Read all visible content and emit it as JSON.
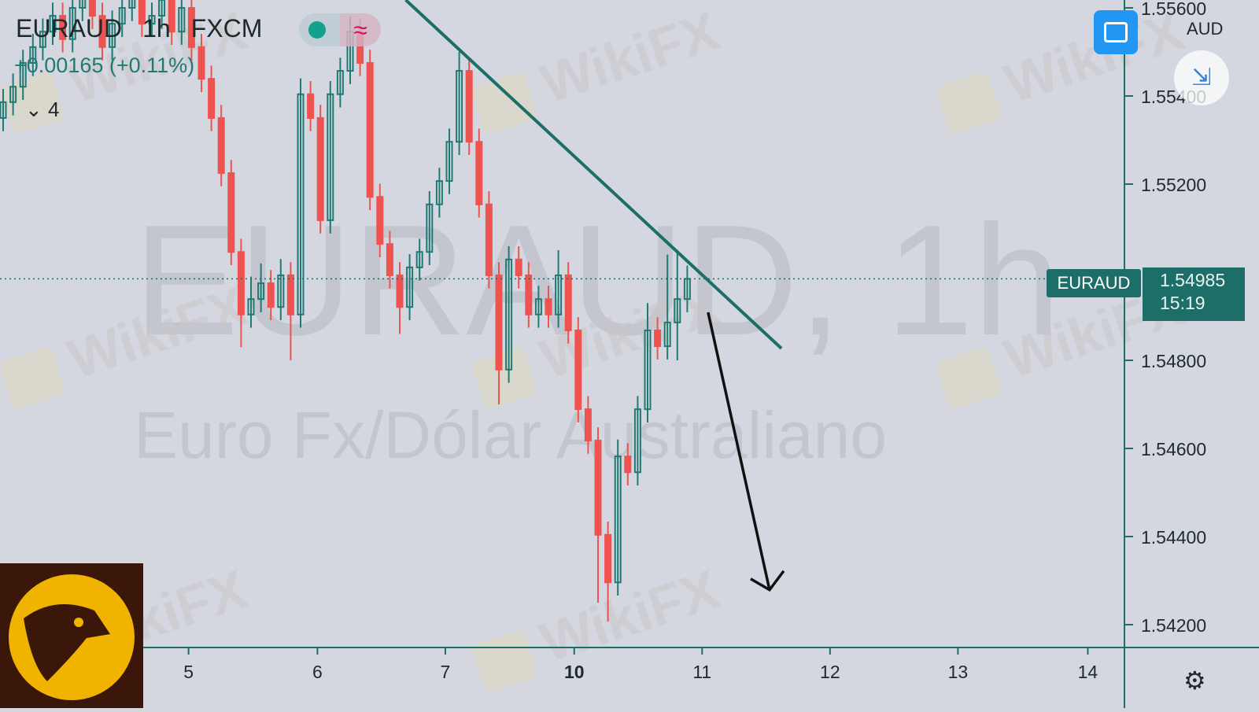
{
  "header": {
    "symbol": "EURAUD",
    "interval": "1h",
    "exchange": "FXCM",
    "change": "+0.00165 (+0.11%)",
    "indicators_toggle": "4",
    "status_dot_color": "#13a08c",
    "wave_icon": "≈"
  },
  "watermark": {
    "title": "EURAUD, 1h",
    "description": "Euro Fx/Dólar Australiano",
    "brand": "WikiFX"
  },
  "controls": {
    "fullscreen_icon": "fullscreen-icon",
    "collapse_icon": "collapse-icon",
    "settings_icon": "gear-icon"
  },
  "price_axis": {
    "currency": "AUD",
    "last_symbol": "EURAUD",
    "last_price": "1.54985",
    "countdown": "15:19"
  },
  "colors": {
    "up": "#1f7a73",
    "down": "#ef5350",
    "trendline": "#1d6e68",
    "arrow": "#111111",
    "background": "#d4d7e0"
  },
  "chart_data": {
    "type": "candlestick",
    "title": "EURAUD, 1h",
    "ylim": [
      1.5405,
      1.5563
    ],
    "yticks": [
      "1.55600",
      "1.55400",
      "1.55200",
      "1.54800",
      "1.54600",
      "1.54400",
      "1.54200"
    ],
    "xticks": [
      {
        "label": "5",
        "bar": 18.7
      },
      {
        "label": "6",
        "bar": 31.7
      },
      {
        "label": "7",
        "bar": 44.6
      },
      {
        "label": "10",
        "bar": 57.6,
        "bold": true
      },
      {
        "label": "11",
        "bar": 70.5
      },
      {
        "label": "12",
        "bar": 83.4
      },
      {
        "label": "13",
        "bar": 96.3
      },
      {
        "label": "14",
        "bar": 109.4
      }
    ],
    "last_price": 1.54985,
    "candles": [
      [
        1.5535,
        1.55416,
        1.5532,
        1.55386
      ],
      [
        1.55386,
        1.55451,
        1.55356,
        1.55421
      ],
      [
        1.55421,
        1.55505,
        1.55391,
        1.55475
      ],
      [
        1.55475,
        1.55541,
        1.55445,
        1.55511
      ],
      [
        1.55511,
        1.55576,
        1.55481,
        1.55546
      ],
      [
        1.55546,
        1.55612,
        1.55516,
        1.55582
      ],
      [
        1.55582,
        1.55612,
        1.55499,
        1.55529
      ],
      [
        1.55529,
        1.5563,
        1.55499,
        1.556
      ],
      [
        1.556,
        1.55666,
        1.5557,
        1.55636
      ],
      [
        1.55636,
        1.55666,
        1.55552,
        1.55582
      ],
      [
        1.55582,
        1.55612,
        1.55481,
        1.55511
      ],
      [
        1.55511,
        1.55594,
        1.55481,
        1.55564
      ],
      [
        1.55564,
        1.5563,
        1.55534,
        1.556
      ],
      [
        1.556,
        1.55657,
        1.5557,
        1.55627
      ],
      [
        1.55627,
        1.55657,
        1.55534,
        1.55564
      ],
      [
        1.55564,
        1.55612,
        1.55534,
        1.55582
      ],
      [
        1.55582,
        1.55648,
        1.55552,
        1.55618
      ],
      [
        1.55618,
        1.55648,
        1.55516,
        1.55546
      ],
      [
        1.55546,
        1.5563,
        1.55516,
        1.556
      ],
      [
        1.556,
        1.5563,
        1.55481,
        1.55511
      ],
      [
        1.55511,
        1.55541,
        1.55409,
        1.55439
      ],
      [
        1.55439,
        1.55469,
        1.5532,
        1.5535
      ],
      [
        1.5535,
        1.5538,
        1.55195,
        1.55225
      ],
      [
        1.55225,
        1.55255,
        1.55016,
        1.55046
      ],
      [
        1.55046,
        1.55076,
        1.5483,
        1.54904
      ],
      [
        1.54904,
        1.5499,
        1.54874,
        1.54939
      ],
      [
        1.54939,
        1.5502,
        1.54909,
        1.54975
      ],
      [
        1.54975,
        1.55005,
        1.54891,
        1.54921
      ],
      [
        1.54921,
        1.5503,
        1.54891,
        1.54993
      ],
      [
        1.54993,
        1.55023,
        1.548,
        1.54904
      ],
      [
        1.54904,
        1.5544,
        1.54874,
        1.55404
      ],
      [
        1.55404,
        1.55434,
        1.5532,
        1.5535
      ],
      [
        1.5535,
        1.5538,
        1.55088,
        1.55118
      ],
      [
        1.55118,
        1.55434,
        1.55088,
        1.55404
      ],
      [
        1.55404,
        1.55487,
        1.55374,
        1.55457
      ],
      [
        1.55457,
        1.5558,
        1.55427,
        1.55546
      ],
      [
        1.55546,
        1.55576,
        1.55445,
        1.55475
      ],
      [
        1.55475,
        1.55505,
        1.55141,
        1.55171
      ],
      [
        1.55171,
        1.55201,
        1.55034,
        1.55064
      ],
      [
        1.55064,
        1.55094,
        1.54963,
        1.54993
      ],
      [
        1.54993,
        1.55023,
        1.5486,
        1.54921
      ],
      [
        1.54921,
        1.55041,
        1.54891,
        1.55011
      ],
      [
        1.55011,
        1.55076,
        1.54981,
        1.55046
      ],
      [
        1.55046,
        1.55184,
        1.55016,
        1.55154
      ],
      [
        1.55154,
        1.55237,
        1.55124,
        1.55207
      ],
      [
        1.55207,
        1.55326,
        1.55177,
        1.55296
      ],
      [
        1.55296,
        1.555,
        1.55266,
        1.55457
      ],
      [
        1.55457,
        1.55487,
        1.55266,
        1.55296
      ],
      [
        1.55296,
        1.55326,
        1.55124,
        1.55154
      ],
      [
        1.55154,
        1.55184,
        1.54963,
        1.54993
      ],
      [
        1.54993,
        1.55023,
        1.547,
        1.54779
      ],
      [
        1.54779,
        1.55059,
        1.54749,
        1.55029
      ],
      [
        1.55029,
        1.55059,
        1.54963,
        1.54993
      ],
      [
        1.54993,
        1.55023,
        1.54874,
        1.54904
      ],
      [
        1.54904,
        1.54969,
        1.54874,
        1.54939
      ],
      [
        1.54939,
        1.54969,
        1.54874,
        1.54904
      ],
      [
        1.54904,
        1.5505,
        1.54874,
        1.54993
      ],
      [
        1.54993,
        1.55023,
        1.54838,
        1.54868
      ],
      [
        1.54868,
        1.54898,
        1.54659,
        1.54689
      ],
      [
        1.54689,
        1.54719,
        1.54588,
        1.54618
      ],
      [
        1.54618,
        1.54648,
        1.5425,
        1.54404
      ],
      [
        1.54404,
        1.54434,
        1.54207,
        1.54296
      ],
      [
        1.54296,
        1.5462,
        1.54266,
        1.54582
      ],
      [
        1.54582,
        1.54612,
        1.54516,
        1.54546
      ],
      [
        1.54546,
        1.54719,
        1.54516,
        1.54689
      ],
      [
        1.54689,
        1.5493,
        1.54659,
        1.54868
      ],
      [
        1.54868,
        1.54898,
        1.54802,
        1.54832
      ],
      [
        1.54832,
        1.5504,
        1.54802,
        1.54886
      ],
      [
        1.54886,
        1.5505,
        1.548,
        1.54939
      ],
      [
        1.54939,
        1.55015,
        1.54909,
        1.54985
      ]
    ],
    "trendline": [
      {
        "bar": 40.6,
        "price": 1.55618
      },
      {
        "bar": 78.5,
        "price": 1.54827
      }
    ],
    "arrow": [
      {
        "bar": 71.1,
        "price": 1.54909
      },
      {
        "bar": 77.3,
        "price": 1.54279
      }
    ]
  }
}
